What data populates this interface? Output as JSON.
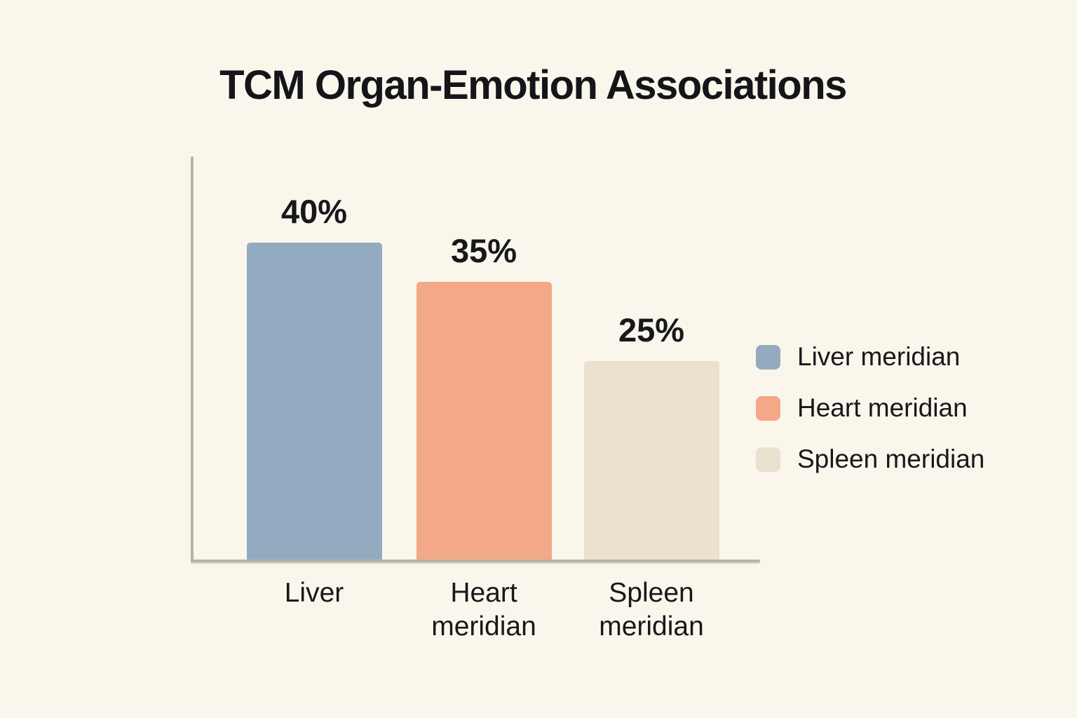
{
  "page": {
    "background_color": "#faf6ec",
    "text_color": "#17181a",
    "axis_color": "#b6b3ab"
  },
  "chart_data": {
    "type": "bar",
    "title": "TCM Organ-Emotion Associations",
    "categories": [
      "Liver",
      "Heart meridian",
      "Spleen meridian"
    ],
    "values": [
      40,
      35,
      25
    ],
    "value_labels": [
      "40%",
      "35%",
      "25%"
    ],
    "bar_colors": [
      "#93abc0",
      "#f3a888",
      "#eae1ce"
    ],
    "unit": "%",
    "ylim": [
      0,
      50
    ],
    "grid": false,
    "xlabel": "",
    "ylabel": "",
    "legend": {
      "position": "right",
      "entries": [
        {
          "label": "Liver meridian",
          "color": "#93abc0"
        },
        {
          "label": "Heart meridian",
          "color": "#f3a888"
        },
        {
          "label": "Spleen meridian",
          "color": "#eae1ce"
        }
      ]
    }
  }
}
